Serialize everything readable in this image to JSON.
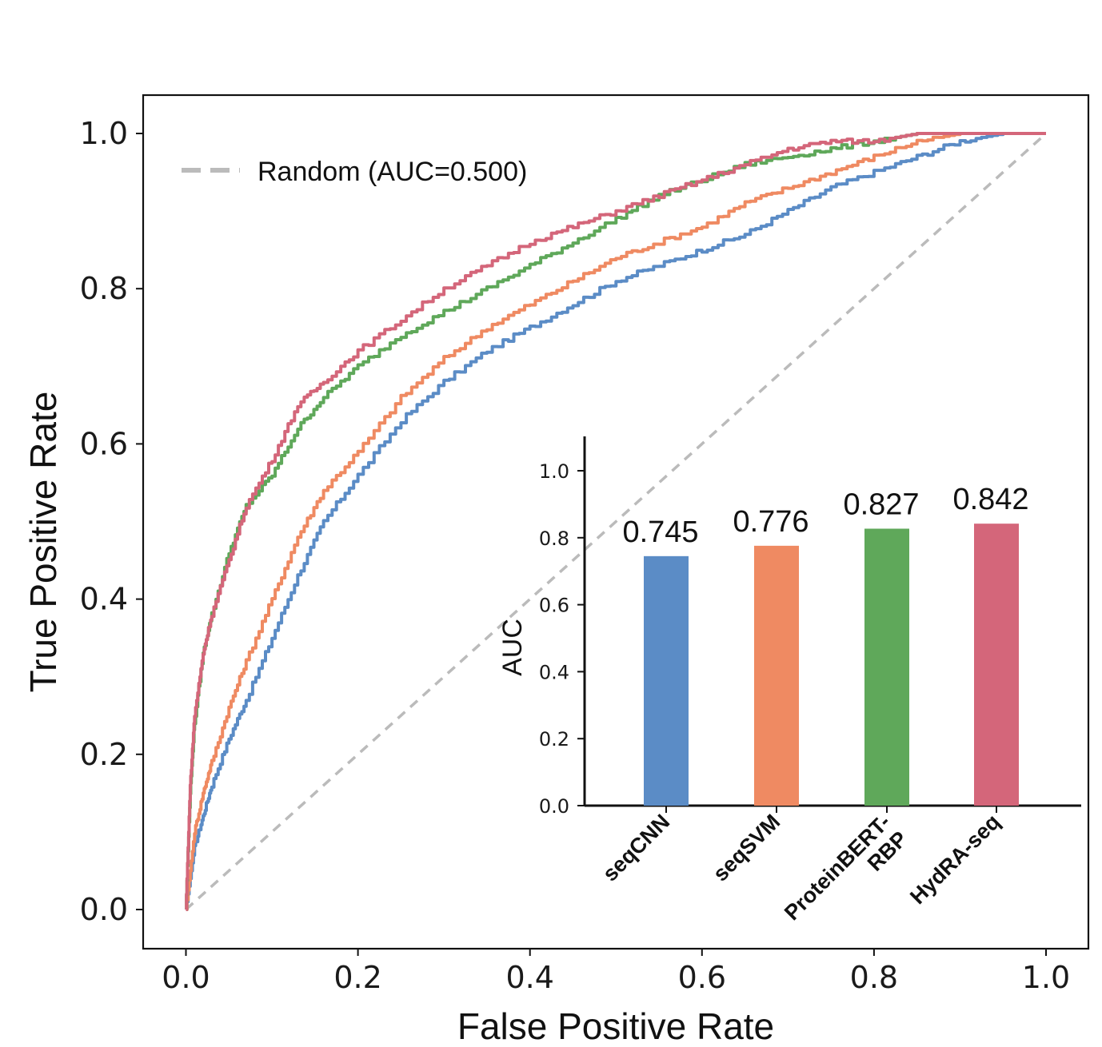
{
  "chart_data": [
    {
      "type": "line",
      "title": "",
      "xlabel": "False Positive Rate",
      "ylabel": "True Positive Rate",
      "xlim": [
        -0.05,
        1.05
      ],
      "ylim": [
        -0.05,
        1.05
      ],
      "xticks": [
        "0.0",
        "0.2",
        "0.4",
        "0.6",
        "0.8",
        "1.0"
      ],
      "yticks": [
        "0.0",
        "0.2",
        "0.4",
        "0.6",
        "0.8",
        "1.0"
      ],
      "legend": {
        "location": "top-left",
        "entries": [
          {
            "label": "Random (AUC=0.500)",
            "color": "#bbbbbb",
            "style": "dashed"
          }
        ]
      },
      "series": [
        {
          "name": "seqCNN",
          "color": "#5b8cc6",
          "x": [
            0,
            0.01,
            0.02,
            0.03,
            0.05,
            0.07,
            0.1,
            0.13,
            0.16,
            0.2,
            0.25,
            0.3,
            0.35,
            0.4,
            0.45,
            0.5,
            0.55,
            0.6,
            0.65,
            0.7,
            0.75,
            0.8,
            0.85,
            0.9,
            0.95,
            1.0
          ],
          "y": [
            0,
            0.08,
            0.12,
            0.16,
            0.22,
            0.27,
            0.35,
            0.43,
            0.5,
            0.56,
            0.63,
            0.68,
            0.72,
            0.75,
            0.78,
            0.81,
            0.83,
            0.85,
            0.87,
            0.9,
            0.93,
            0.95,
            0.97,
            0.99,
            1.0,
            1.0
          ]
        },
        {
          "name": "seqSVM",
          "color": "#ef8a62",
          "x": [
            0,
            0.01,
            0.02,
            0.03,
            0.05,
            0.07,
            0.1,
            0.13,
            0.16,
            0.2,
            0.25,
            0.3,
            0.35,
            0.4,
            0.45,
            0.5,
            0.55,
            0.6,
            0.65,
            0.7,
            0.75,
            0.8,
            0.85,
            0.9,
            0.95,
            1.0
          ],
          "y": [
            0,
            0.1,
            0.15,
            0.19,
            0.26,
            0.32,
            0.4,
            0.48,
            0.54,
            0.59,
            0.66,
            0.71,
            0.75,
            0.78,
            0.81,
            0.84,
            0.86,
            0.88,
            0.91,
            0.93,
            0.95,
            0.97,
            0.99,
            1.0,
            1.0,
            1.0
          ]
        },
        {
          "name": "ProteinBERT-RBP",
          "color": "#5fa85a",
          "x": [
            0,
            0.005,
            0.01,
            0.02,
            0.03,
            0.05,
            0.07,
            0.1,
            0.13,
            0.16,
            0.2,
            0.25,
            0.3,
            0.35,
            0.4,
            0.45,
            0.5,
            0.55,
            0.6,
            0.65,
            0.7,
            0.75,
            0.8,
            0.85,
            0.9,
            1.0
          ],
          "y": [
            0,
            0.15,
            0.24,
            0.33,
            0.38,
            0.46,
            0.52,
            0.56,
            0.62,
            0.66,
            0.7,
            0.74,
            0.77,
            0.8,
            0.83,
            0.86,
            0.89,
            0.92,
            0.94,
            0.96,
            0.97,
            0.98,
            0.99,
            1.0,
            1.0,
            1.0
          ]
        },
        {
          "name": "HydRA-seq",
          "color": "#d4667a",
          "x": [
            0,
            0.005,
            0.01,
            0.02,
            0.03,
            0.05,
            0.07,
            0.1,
            0.13,
            0.16,
            0.2,
            0.25,
            0.3,
            0.35,
            0.4,
            0.45,
            0.5,
            0.55,
            0.6,
            0.65,
            0.7,
            0.75,
            0.8,
            0.85,
            0.9,
            1.0
          ],
          "y": [
            0,
            0.16,
            0.25,
            0.33,
            0.38,
            0.45,
            0.52,
            0.58,
            0.65,
            0.68,
            0.72,
            0.76,
            0.8,
            0.83,
            0.86,
            0.88,
            0.9,
            0.92,
            0.94,
            0.96,
            0.98,
            0.99,
            0.99,
            1.0,
            1.0,
            1.0
          ]
        },
        {
          "name": "Random (AUC=0.500)",
          "color": "#bbbbbb",
          "style": "dashed",
          "x": [
            0,
            1
          ],
          "y": [
            0,
            1
          ]
        }
      ]
    },
    {
      "type": "bar",
      "title": "",
      "xlabel": "",
      "ylabel": "AUC",
      "ylim": [
        0,
        1.1
      ],
      "yticks": [
        "0.0",
        "0.2",
        "0.4",
        "0.6",
        "0.8",
        "1.0"
      ],
      "categories": [
        "seqCNN",
        "seqSVM",
        "ProteinBERT-\nRBP",
        "HydRA-seq"
      ],
      "values": [
        0.745,
        0.776,
        0.827,
        0.842
      ],
      "value_labels": [
        "0.745",
        "0.776",
        "0.827",
        "0.842"
      ],
      "colors": [
        "#5b8cc6",
        "#ef8a62",
        "#5fa85a",
        "#d4667a"
      ]
    }
  ]
}
